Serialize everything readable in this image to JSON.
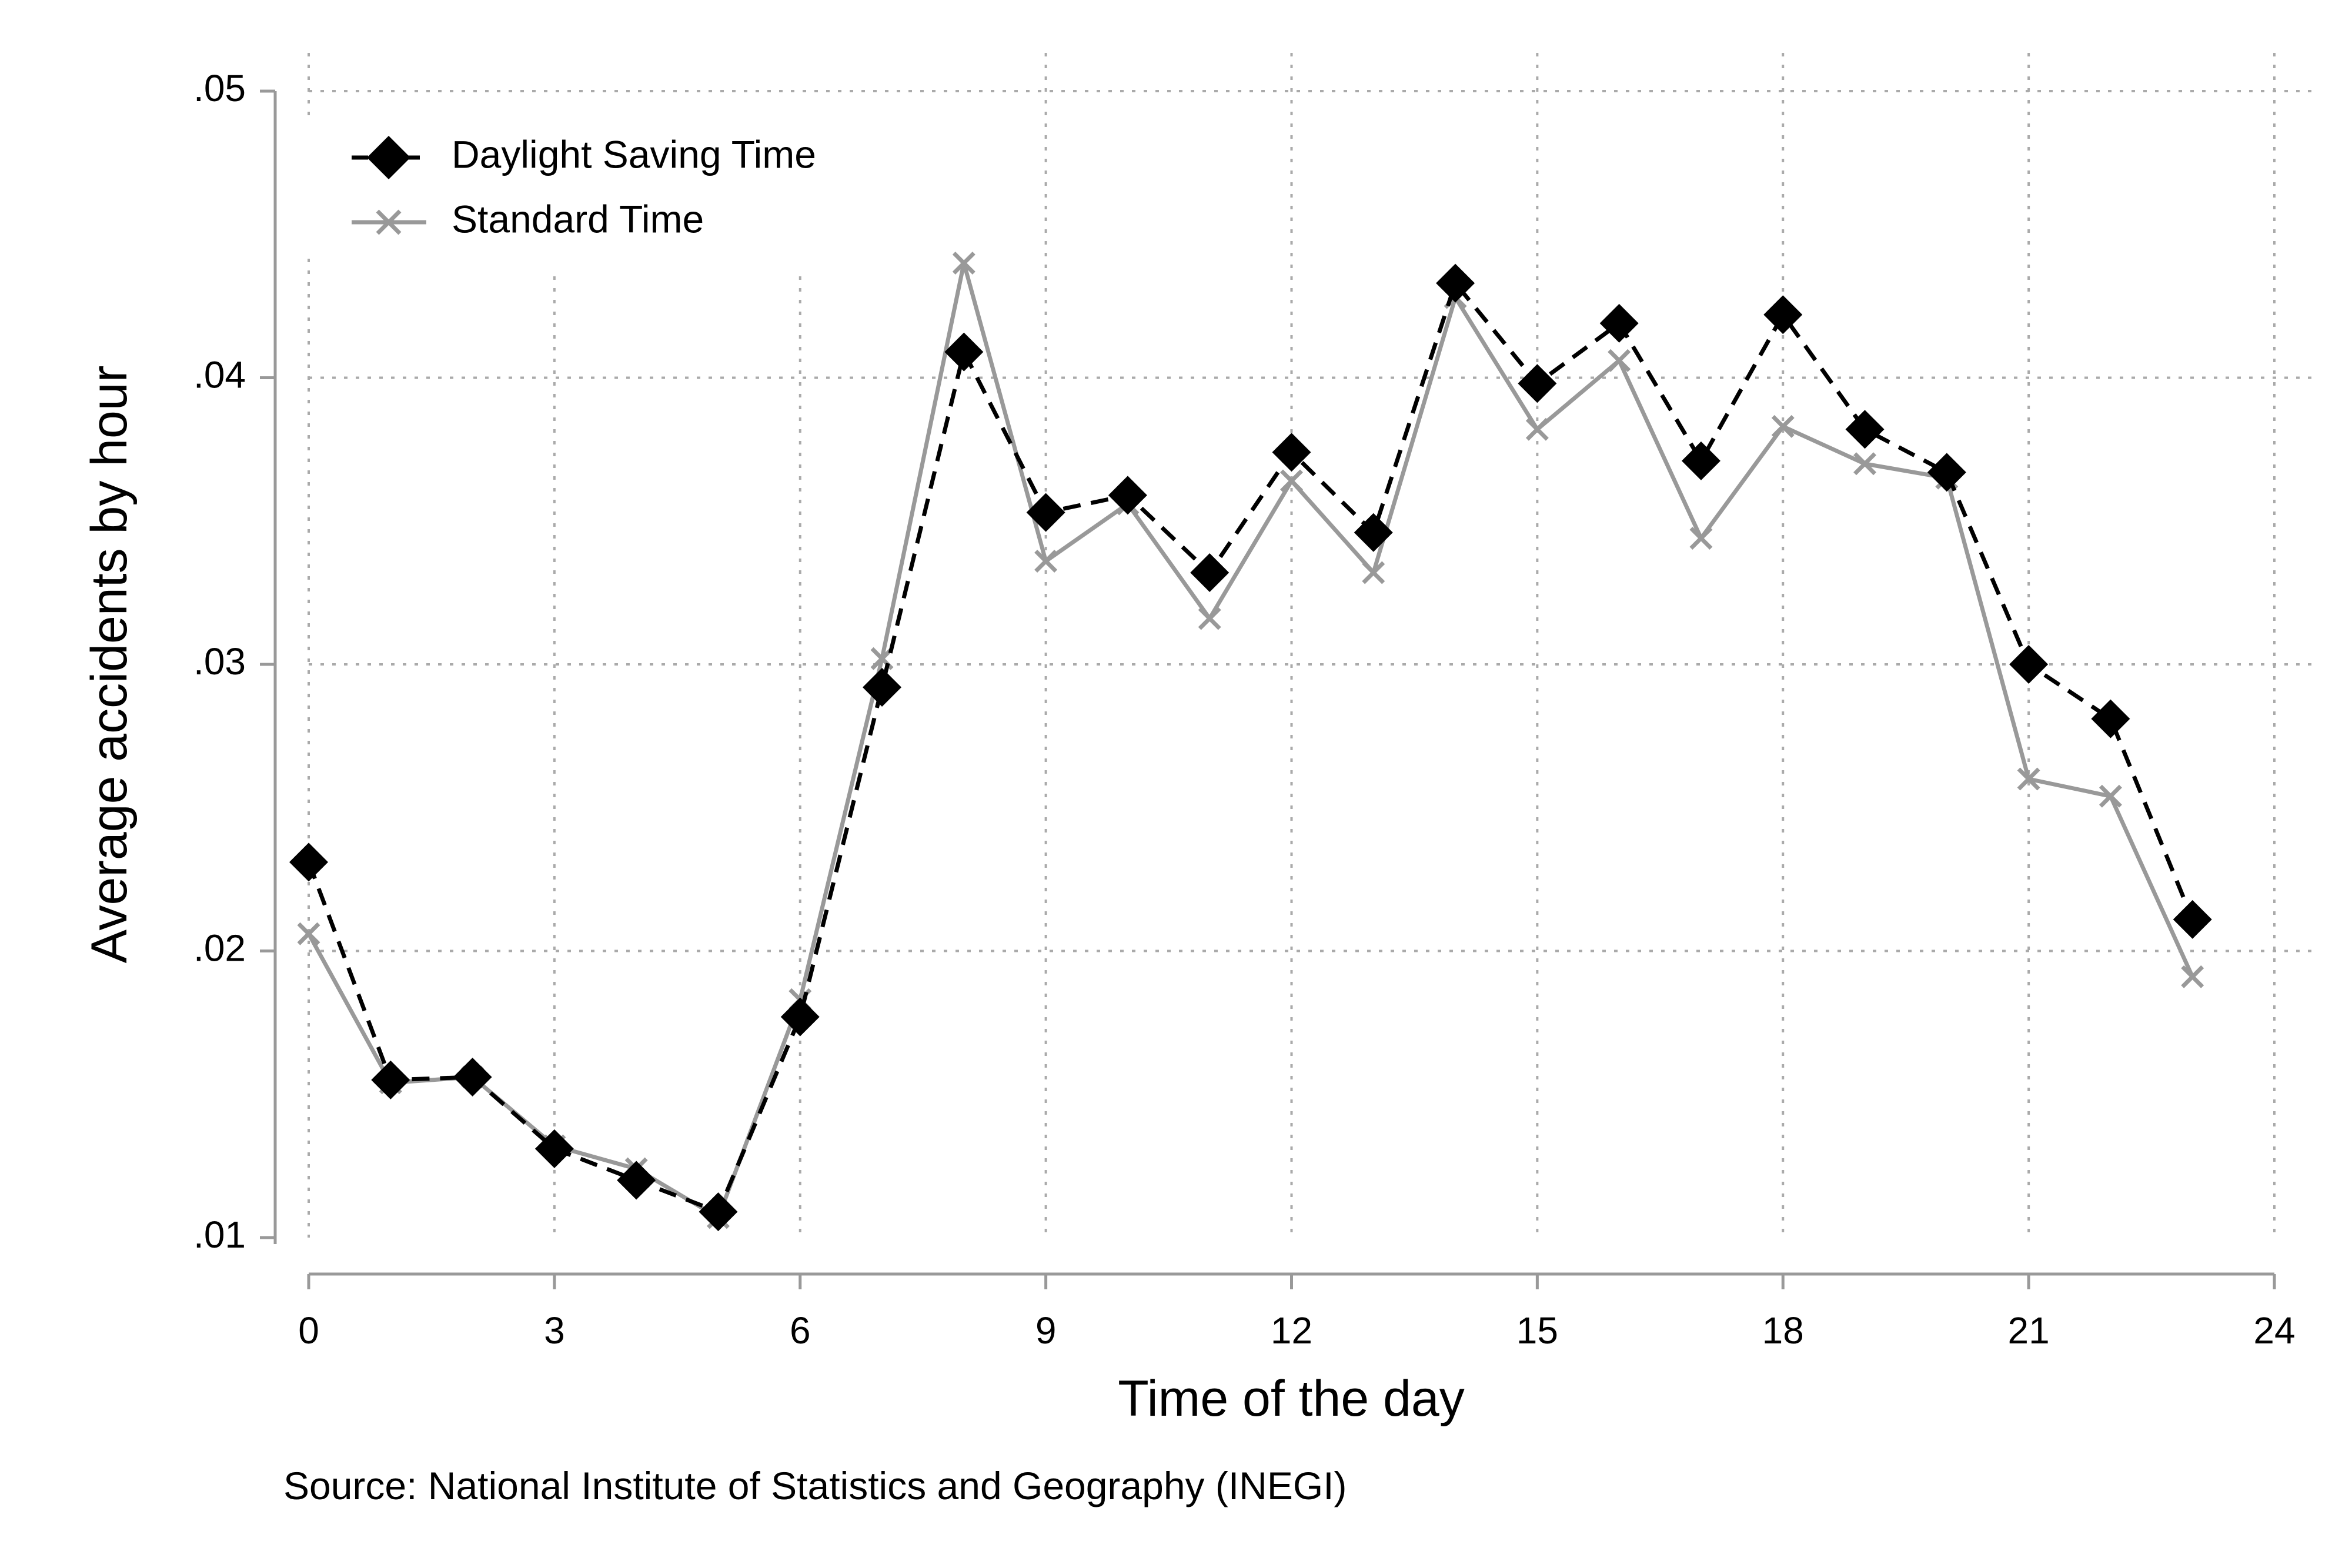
{
  "chart_data": {
    "type": "line",
    "xlabel": "Time of the day",
    "ylabel": "Average accidents by hour",
    "note": "Source: National Institute of Statistics and Geography (INEGI)",
    "xlim": [
      0,
      24
    ],
    "ylim": [
      0.01,
      0.05
    ],
    "xticks": [
      0,
      3,
      6,
      9,
      12,
      15,
      18,
      21,
      24
    ],
    "xtick_labels": [
      "0",
      "3",
      "6",
      "9",
      "12",
      "15",
      "18",
      "21",
      "24"
    ],
    "yticks": [
      0.01,
      0.02,
      0.03,
      0.04,
      0.05
    ],
    "ytick_labels": [
      ".01",
      ".02",
      ".03",
      ".04",
      ".05"
    ],
    "grid": true,
    "legend_position": "top-left",
    "x": [
      0,
      1,
      2,
      3,
      4,
      5,
      6,
      7,
      8,
      9,
      10,
      11,
      12,
      13,
      14,
      15,
      16,
      17,
      18,
      19,
      20,
      21,
      22,
      23
    ],
    "series": [
      {
        "name": "Daylight Saving Time",
        "color": "#000000",
        "line_style": "dashed",
        "marker": "diamond",
        "values": [
          0.0231,
          0.0155,
          0.0156,
          0.0131,
          0.012,
          0.0109,
          0.0177,
          0.0292,
          0.0409,
          0.0353,
          0.0359,
          0.0332,
          0.0374,
          0.0346,
          0.0433,
          0.0398,
          0.0419,
          0.0371,
          0.0422,
          0.0382,
          0.0367,
          0.03,
          0.0281,
          0.0211
        ]
      },
      {
        "name": "Standard Time",
        "color": "#999999",
        "line_style": "solid",
        "marker": "x",
        "values": [
          0.0206,
          0.0154,
          0.0156,
          0.0132,
          0.0124,
          0.0107,
          0.0183,
          0.0302,
          0.044,
          0.0336,
          0.0356,
          0.0316,
          0.0364,
          0.0332,
          0.0428,
          0.0382,
          0.0406,
          0.0344,
          0.0383,
          0.037,
          0.0365,
          0.026,
          0.0254,
          0.0191
        ]
      }
    ]
  }
}
